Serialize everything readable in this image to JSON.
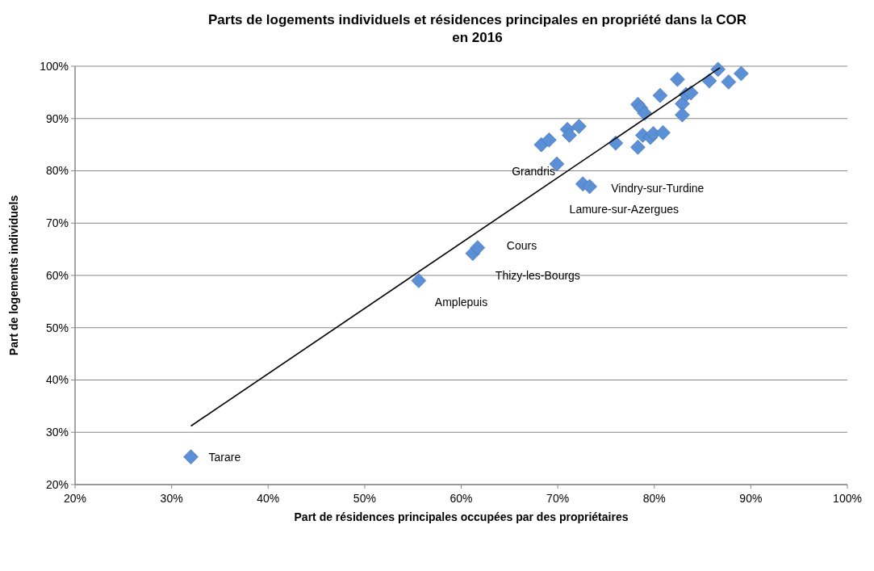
{
  "chart_data": {
    "type": "scatter",
    "title": "Parts de logements individuels et résidences principales en propriété dans la COR en 2016",
    "xlabel": "Part de résidences principales occupées par des propriétaires",
    "ylabel": "Part de logements individuels",
    "xlim": [
      20,
      100
    ],
    "ylim": [
      20,
      100
    ],
    "xticks": [
      {
        "value": 20,
        "label": "20%"
      },
      {
        "value": 30,
        "label": "30%"
      },
      {
        "value": 40,
        "label": "40%"
      },
      {
        "value": 50,
        "label": "50%"
      },
      {
        "value": 60,
        "label": "60%"
      },
      {
        "value": 70,
        "label": "70%"
      },
      {
        "value": 80,
        "label": "80%"
      },
      {
        "value": 90,
        "label": "90%"
      },
      {
        "value": 100,
        "label": "100%"
      }
    ],
    "yticks": [
      {
        "value": 20,
        "label": "20%"
      },
      {
        "value": 30,
        "label": "30%"
      },
      {
        "value": 40,
        "label": "40%"
      },
      {
        "value": 50,
        "label": "50%"
      },
      {
        "value": 60,
        "label": "60%"
      },
      {
        "value": 70,
        "label": "70%"
      },
      {
        "value": 80,
        "label": "80%"
      },
      {
        "value": 90,
        "label": "90%"
      },
      {
        "value": 100,
        "label": "100%"
      }
    ],
    "grid": "y",
    "series": [
      {
        "color": "#5b8fd6",
        "marker": "diamond",
        "x": [
          32,
          55.6,
          61.2,
          61.7,
          69.9,
          72.6,
          73.3,
          68.3,
          69.1,
          71,
          71.2,
          72.2,
          76,
          78.3,
          78.8,
          79.6,
          79.9,
          80.9,
          78.3,
          78.6,
          79,
          80.6,
          82.4,
          82.9,
          82.9,
          83.3,
          83.8,
          85.7,
          86.6,
          87.7,
          89
        ],
        "values": [
          25.3,
          59,
          64.2,
          65.3,
          81.3,
          77.5,
          77,
          85,
          85.9,
          87.9,
          86.8,
          88.5,
          85.3,
          84.5,
          86.8,
          86.4,
          87.1,
          87.3,
          92.7,
          92,
          91,
          94.4,
          97.5,
          92.8,
          90.7,
          94.6,
          94.9,
          97.2,
          99.4,
          97,
          98.6
        ]
      },
      {
        "type": "line",
        "color": "#000000",
        "marker": "none",
        "x": [
          32,
          86.8
        ],
        "values": [
          31.2,
          99.7
        ]
      }
    ],
    "annotations": [
      {
        "text": "Tarare",
        "x": 32,
        "y": 25.3
      },
      {
        "text": "Amplepuis",
        "x": 55.6,
        "y": 59
      },
      {
        "text": "Thizy-les-Bourgs",
        "x": 61.2,
        "y": 64.2
      },
      {
        "text": "Cours",
        "x": 61.7,
        "y": 65.3
      },
      {
        "text": "Grandris",
        "x": 69.9,
        "y": 81.3
      },
      {
        "text": "Vindry-sur-Turdine",
        "x": 72.6,
        "y": 77.5
      },
      {
        "text": "Lamure-sur-Azergues",
        "x": 73.3,
        "y": 77
      }
    ]
  }
}
